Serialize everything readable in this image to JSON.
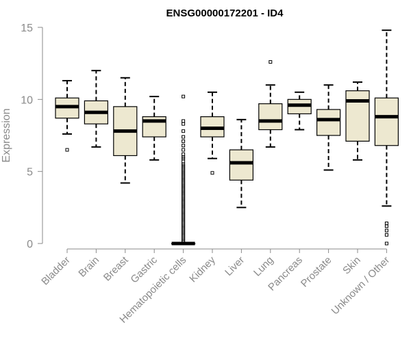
{
  "chart_data": {
    "type": "boxplot",
    "title": "ENSG00000172201 - ID4",
    "xlabel": "",
    "ylabel": "Expression",
    "ylim": [
      0,
      15
    ],
    "yticks": [
      0,
      5,
      10,
      15
    ],
    "box_color": "#ede8d0",
    "categories": [
      "Bladder",
      "Brain",
      "Breast",
      "Gastric",
      "Hematopoietic cells",
      "Kidney",
      "Liver",
      "Lung",
      "Pancreas",
      "Prostate",
      "Skin",
      "Unknown / Other"
    ],
    "series": [
      {
        "name": "Bladder",
        "whisker_low": 7.6,
        "q1": 8.7,
        "median": 9.5,
        "q3": 10.1,
        "whisker_high": 11.3,
        "outliers": [
          6.5
        ]
      },
      {
        "name": "Brain",
        "whisker_low": 6.7,
        "q1": 8.3,
        "median": 9.1,
        "q3": 9.9,
        "whisker_high": 12.0,
        "outliers": []
      },
      {
        "name": "Breast",
        "whisker_low": 4.2,
        "q1": 6.1,
        "median": 7.8,
        "q3": 9.5,
        "whisker_high": 11.5,
        "outliers": []
      },
      {
        "name": "Gastric",
        "whisker_low": 5.8,
        "q1": 7.4,
        "median": 8.5,
        "q3": 8.8,
        "whisker_high": 10.2,
        "outliers": []
      },
      {
        "name": "Hematopoietic cells",
        "whisker_low": 0.0,
        "q1": 0.0,
        "median": 0.0,
        "q3": 0.0,
        "whisker_high": 0.0,
        "outliers": [
          0.1,
          0.2,
          0.3,
          0.4,
          0.5,
          0.6,
          0.7,
          0.8,
          0.9,
          1.0,
          1.1,
          1.2,
          1.3,
          1.4,
          1.5,
          1.6,
          1.7,
          1.8,
          1.9,
          2.0,
          2.1,
          2.2,
          2.3,
          2.4,
          2.5,
          2.6,
          2.7,
          2.8,
          2.9,
          3.0,
          3.1,
          3.2,
          3.3,
          3.4,
          3.5,
          3.6,
          3.7,
          3.8,
          3.9,
          4.0,
          4.1,
          4.2,
          4.3,
          4.4,
          4.5,
          4.6,
          4.7,
          4.8,
          4.9,
          5.0,
          5.1,
          5.2,
          5.3,
          5.4,
          5.5,
          5.7,
          5.9,
          6.0,
          6.2,
          6.5,
          6.8,
          7.1,
          7.4,
          7.8,
          8.3,
          8.5,
          10.2
        ]
      },
      {
        "name": "Kidney",
        "whisker_low": 5.9,
        "q1": 7.4,
        "median": 8.0,
        "q3": 8.8,
        "whisker_high": 10.5,
        "outliers": [
          4.9
        ]
      },
      {
        "name": "Liver",
        "whisker_low": 2.5,
        "q1": 4.4,
        "median": 5.6,
        "q3": 6.5,
        "whisker_high": 8.6,
        "outliers": []
      },
      {
        "name": "Lung",
        "whisker_low": 6.7,
        "q1": 7.9,
        "median": 8.5,
        "q3": 9.7,
        "whisker_high": 11.0,
        "outliers": [
          12.6
        ]
      },
      {
        "name": "Pancreas",
        "whisker_low": 7.9,
        "q1": 9.0,
        "median": 9.6,
        "q3": 10.0,
        "whisker_high": 10.5,
        "outliers": []
      },
      {
        "name": "Prostate",
        "whisker_low": 5.1,
        "q1": 7.5,
        "median": 8.6,
        "q3": 9.3,
        "whisker_high": 11.0,
        "outliers": []
      },
      {
        "name": "Skin",
        "whisker_low": 5.8,
        "q1": 7.1,
        "median": 9.9,
        "q3": 10.6,
        "whisker_high": 11.2,
        "outliers": []
      },
      {
        "name": "Unknown / Other",
        "whisker_low": 2.6,
        "q1": 6.8,
        "median": 8.8,
        "q3": 10.1,
        "whisker_high": 14.8,
        "outliers": [
          0.0,
          0.6,
          0.9,
          1.2,
          1.4
        ]
      }
    ]
  }
}
